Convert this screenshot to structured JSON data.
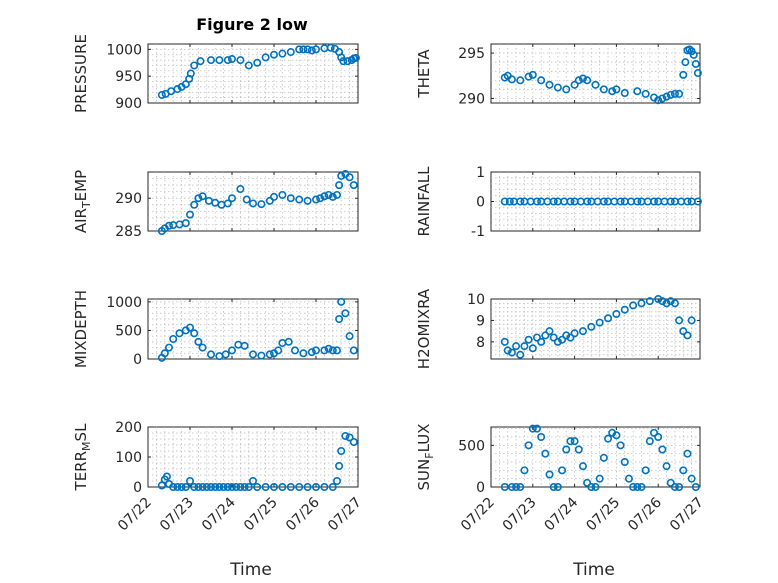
{
  "figure": {
    "title": "Figure 2 low",
    "marker_color": "#0072bd",
    "x_tick_labels": [
      "07/22",
      "07/23",
      "07/24",
      "07/25",
      "07/26",
      "07/27"
    ],
    "x_axis_label": "Time"
  },
  "chart_data": [
    {
      "type": "scatter",
      "ylabel": "PRESSURE",
      "xlabel": "",
      "xlim": [
        0,
        5
      ],
      "ylim": [
        900,
        1010
      ],
      "yticks": [
        900,
        950,
        1000
      ],
      "yticklabels": [
        "900",
        "950",
        "1000"
      ],
      "grid": true,
      "x": [
        0.33,
        0.42,
        0.55,
        0.7,
        0.8,
        0.9,
        0.98,
        1.02,
        1.1,
        1.25,
        1.5,
        1.7,
        1.9,
        2.0,
        2.2,
        2.4,
        2.6,
        2.8,
        3.0,
        3.2,
        3.4,
        3.6,
        3.7,
        3.8,
        3.9,
        4.0,
        4.2,
        4.35,
        4.45,
        4.55,
        4.6,
        4.65,
        4.75,
        4.85,
        4.9,
        4.95
      ],
      "y": [
        915,
        917,
        922,
        926,
        930,
        935,
        945,
        955,
        970,
        978,
        980,
        980,
        980,
        982,
        980,
        970,
        975,
        985,
        990,
        992,
        995,
        1000,
        1000,
        1000,
        998,
        1000,
        1002,
        1003,
        1001,
        995,
        985,
        978,
        978,
        980,
        983,
        984
      ]
    },
    {
      "type": "scatter",
      "ylabel": "THETA",
      "xlabel": "",
      "xlim": [
        0,
        5
      ],
      "ylim": [
        289.5,
        296
      ],
      "yticks": [
        290,
        295
      ],
      "yticklabels": [
        "290",
        "295"
      ],
      "grid": true,
      "x": [
        0.33,
        0.4,
        0.5,
        0.7,
        0.9,
        1.0,
        1.2,
        1.4,
        1.6,
        1.8,
        2.0,
        2.1,
        2.2,
        2.3,
        2.5,
        2.7,
        2.9,
        3.0,
        3.2,
        3.5,
        3.7,
        3.9,
        4.0,
        4.1,
        4.2,
        4.3,
        4.4,
        4.5,
        4.6,
        4.65,
        4.7,
        4.75,
        4.8,
        4.85,
        4.9,
        4.95
      ],
      "y": [
        292.3,
        292.5,
        292.1,
        292.0,
        292.4,
        292.6,
        292.0,
        291.5,
        291.2,
        291.0,
        291.5,
        292.0,
        292.2,
        292.0,
        291.5,
        291.0,
        290.8,
        291.0,
        290.6,
        290.8,
        290.5,
        290.1,
        289.8,
        290.0,
        290.2,
        290.4,
        290.5,
        290.5,
        292.6,
        294.0,
        295.3,
        295.4,
        295.2,
        294.8,
        293.8,
        292.8
      ]
    },
    {
      "type": "scatter",
      "ylabel": "AIR_TEMP",
      "xlabel": "",
      "xlim": [
        0,
        5
      ],
      "ylim": [
        285,
        294
      ],
      "yticks": [
        285,
        290
      ],
      "yticklabels": [
        "285",
        "290"
      ],
      "grid": true,
      "x": [
        0.33,
        0.4,
        0.5,
        0.6,
        0.75,
        0.9,
        1.0,
        1.1,
        1.2,
        1.3,
        1.45,
        1.6,
        1.75,
        1.9,
        2.0,
        2.2,
        2.35,
        2.5,
        2.7,
        2.9,
        3.0,
        3.2,
        3.4,
        3.6,
        3.8,
        4.0,
        4.1,
        4.2,
        4.3,
        4.4,
        4.5,
        4.55,
        4.6,
        4.7,
        4.8,
        4.9
      ],
      "y": [
        285.0,
        285.4,
        285.8,
        285.9,
        286.0,
        286.2,
        287.5,
        289.0,
        290.0,
        290.3,
        289.6,
        289.3,
        289.0,
        289.2,
        290.0,
        291.4,
        289.8,
        289.2,
        289.1,
        289.6,
        290.2,
        290.5,
        290.0,
        289.8,
        289.6,
        289.8,
        290.0,
        290.3,
        290.5,
        290.2,
        290.5,
        292.0,
        293.4,
        293.7,
        293.2,
        292.0
      ]
    },
    {
      "type": "scatter",
      "ylabel": "RAINFALL",
      "xlabel": "",
      "xlim": [
        0,
        5
      ],
      "ylim": [
        -1,
        1
      ],
      "yticks": [
        -1,
        0,
        1
      ],
      "yticklabels": [
        "-1",
        "0",
        "1"
      ],
      "grid": true,
      "x": [
        0.33,
        0.45,
        0.55,
        0.7,
        0.8,
        0.95,
        1.1,
        1.2,
        1.35,
        1.5,
        1.6,
        1.75,
        1.9,
        2.0,
        2.15,
        2.3,
        2.4,
        2.55,
        2.7,
        2.8,
        2.95,
        3.1,
        3.2,
        3.35,
        3.5,
        3.6,
        3.75,
        3.9,
        4.0,
        4.15,
        4.3,
        4.4,
        4.55,
        4.7,
        4.8,
        4.95
      ],
      "y": [
        0,
        0,
        0,
        0,
        0,
        0,
        0,
        0,
        0,
        0,
        0,
        0,
        0,
        0,
        0,
        0,
        0,
        0,
        0,
        0,
        0,
        0,
        0,
        0,
        0,
        0,
        0,
        0,
        0,
        0,
        0,
        0,
        0,
        0,
        0,
        0
      ]
    },
    {
      "type": "scatter",
      "ylabel": "MIXDEPTH",
      "xlabel": "",
      "xlim": [
        0,
        5
      ],
      "ylim": [
        0,
        1050
      ],
      "yticks": [
        0,
        500,
        1000
      ],
      "yticklabels": [
        "0",
        "500",
        "1000"
      ],
      "grid": true,
      "x": [
        0.33,
        0.4,
        0.5,
        0.6,
        0.75,
        0.9,
        1.0,
        1.1,
        1.2,
        1.3,
        1.5,
        1.7,
        1.85,
        2.0,
        2.15,
        2.3,
        2.5,
        2.7,
        2.9,
        3.0,
        3.1,
        3.2,
        3.35,
        3.5,
        3.7,
        3.9,
        4.0,
        4.2,
        4.3,
        4.4,
        4.5,
        4.55,
        4.6,
        4.7,
        4.8,
        4.9
      ],
      "y": [
        20,
        100,
        200,
        350,
        450,
        500,
        550,
        450,
        300,
        200,
        80,
        50,
        80,
        150,
        250,
        230,
        80,
        60,
        80,
        100,
        150,
        280,
        300,
        150,
        100,
        120,
        150,
        150,
        180,
        150,
        150,
        700,
        1000,
        800,
        400,
        150
      ]
    },
    {
      "type": "scatter",
      "ylabel": "H2OMIXRA",
      "xlabel": "",
      "xlim": [
        0,
        5
      ],
      "ylim": [
        7.2,
        10
      ],
      "yticks": [
        8,
        9,
        10
      ],
      "yticklabels": [
        "8",
        "9",
        "10"
      ],
      "grid": true,
      "x": [
        0.33,
        0.4,
        0.5,
        0.6,
        0.7,
        0.8,
        0.9,
        1.0,
        1.1,
        1.2,
        1.3,
        1.4,
        1.5,
        1.6,
        1.7,
        1.8,
        1.9,
        2.0,
        2.2,
        2.4,
        2.6,
        2.8,
        3.0,
        3.2,
        3.4,
        3.6,
        3.8,
        4.0,
        4.1,
        4.2,
        4.3,
        4.4,
        4.5,
        4.6,
        4.7,
        4.8
      ],
      "y": [
        8.0,
        7.6,
        7.5,
        7.8,
        7.4,
        7.8,
        8.1,
        7.7,
        8.2,
        8.0,
        8.3,
        8.5,
        8.2,
        8.0,
        8.1,
        8.3,
        8.2,
        8.4,
        8.5,
        8.7,
        8.9,
        9.1,
        9.3,
        9.5,
        9.7,
        9.8,
        9.9,
        10.0,
        9.9,
        9.8,
        9.9,
        9.8,
        9.0,
        8.5,
        8.3,
        9.0
      ]
    },
    {
      "type": "scatter",
      "ylabel": "TERR_MSL",
      "xlabel": "",
      "xlim": [
        0,
        5
      ],
      "ylim": [
        0,
        200
      ],
      "yticks": [
        0,
        100,
        200
      ],
      "yticklabels": [
        "0",
        "100",
        "200"
      ],
      "grid": true,
      "x": [
        0.33,
        0.4,
        0.45,
        0.5,
        0.6,
        0.7,
        0.8,
        0.9,
        1.0,
        1.1,
        1.2,
        1.3,
        1.4,
        1.5,
        1.6,
        1.7,
        1.8,
        1.9,
        2.0,
        2.1,
        2.2,
        2.3,
        2.4,
        2.5,
        2.6,
        2.8,
        3.0,
        3.2,
        3.4,
        3.6,
        3.8,
        4.0,
        4.2,
        4.4,
        4.5,
        4.55,
        4.6,
        4.7,
        4.8,
        4.9
      ],
      "y": [
        5,
        25,
        35,
        10,
        0,
        0,
        0,
        0,
        20,
        0,
        0,
        0,
        0,
        0,
        0,
        0,
        0,
        0,
        0,
        0,
        0,
        0,
        0,
        20,
        0,
        0,
        0,
        0,
        0,
        0,
        0,
        0,
        0,
        0,
        20,
        70,
        120,
        170,
        165,
        150
      ]
    },
    {
      "type": "scatter",
      "ylabel": "SUN_FLUX",
      "xlabel": "",
      "xlim": [
        0,
        5
      ],
      "ylim": [
        0,
        720
      ],
      "yticks": [
        0,
        500
      ],
      "yticklabels": [
        "0",
        "500"
      ],
      "grid": true,
      "x": [
        0.33,
        0.5,
        0.6,
        0.7,
        0.8,
        0.9,
        1.0,
        1.1,
        1.2,
        1.3,
        1.4,
        1.5,
        1.6,
        1.7,
        1.8,
        1.9,
        2.0,
        2.1,
        2.2,
        2.3,
        2.4,
        2.5,
        2.6,
        2.7,
        2.8,
        2.9,
        3.0,
        3.1,
        3.2,
        3.3,
        3.4,
        3.5,
        3.6,
        3.7,
        3.8,
        3.9,
        4.0,
        4.1,
        4.2,
        4.3,
        4.4,
        4.5,
        4.6,
        4.7,
        4.8,
        4.9
      ],
      "y": [
        0,
        0,
        0,
        0,
        200,
        500,
        700,
        700,
        600,
        400,
        150,
        0,
        0,
        200,
        450,
        550,
        550,
        450,
        250,
        50,
        0,
        0,
        100,
        350,
        580,
        650,
        620,
        500,
        300,
        100,
        0,
        0,
        0,
        200,
        550,
        650,
        600,
        450,
        250,
        50,
        0,
        0,
        200,
        400,
        100,
        0
      ]
    }
  ]
}
